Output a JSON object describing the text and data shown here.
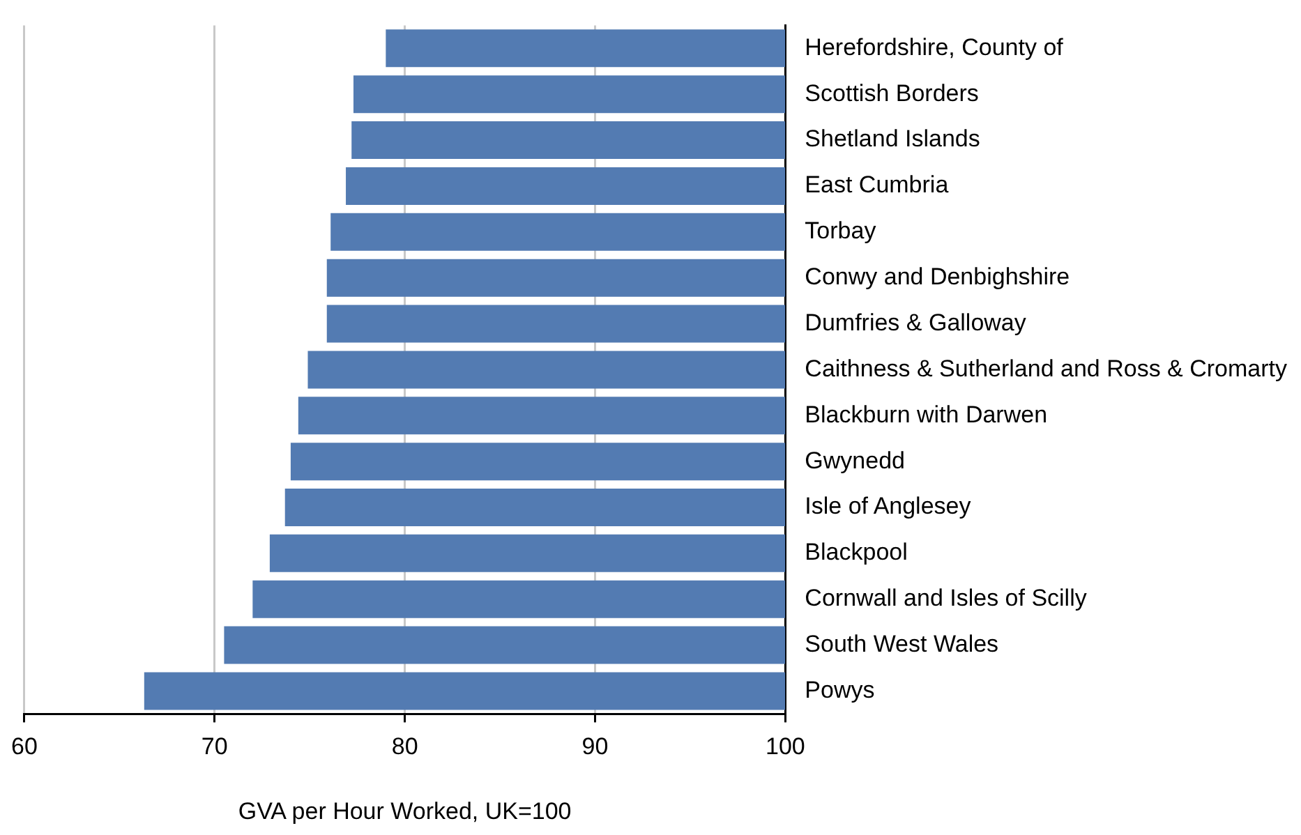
{
  "chart_data": {
    "type": "bar",
    "orientation": "horizontal",
    "xlabel": "GVA per Hour Worked, UK=100",
    "categories": [
      "Herefordshire, County of",
      "Scottish Borders",
      "Shetland Islands",
      "East Cumbria",
      "Torbay",
      "Conwy and Denbighshire",
      "Dumfries & Galloway",
      "Caithness & Sutherland and Ross & Cromarty",
      "Blackburn with Darwen",
      "Gwynedd",
      "Isle of Anglesey",
      "Blackpool",
      "Cornwall and Isles of Scilly",
      "South West Wales",
      "Powys"
    ],
    "base": [
      100,
      100,
      100,
      100,
      100,
      100,
      100,
      100,
      100,
      100,
      100,
      100,
      100,
      100,
      100
    ],
    "values": [
      -21.0,
      -22.7,
      -22.8,
      -23.1,
      -23.9,
      -24.1,
      -24.1,
      -25.1,
      -25.6,
      -26.0,
      -26.3,
      -27.1,
      -28.0,
      -29.5,
      -33.7
    ],
    "color": "#537bb2",
    "xlim": [
      60,
      100
    ],
    "xticks": [
      60,
      70,
      80,
      90,
      100
    ],
    "grid": "x",
    "legend": false
  }
}
